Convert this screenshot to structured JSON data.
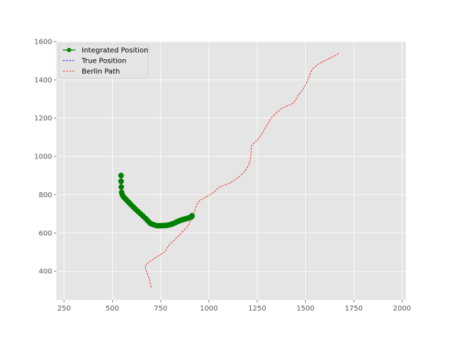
{
  "chart_data": {
    "type": "line",
    "title": "",
    "xlabel": "",
    "ylabel": "",
    "xlim": [
      210,
      2020
    ],
    "ylim": [
      250,
      1600
    ],
    "xticks": [
      250,
      500,
      750,
      1000,
      1250,
      1500,
      1750,
      2000
    ],
    "yticks": [
      400,
      600,
      800,
      1000,
      1200,
      1400,
      1600
    ],
    "grid": true,
    "legend_position": "top-left",
    "background": "#e5e5e5",
    "series": [
      {
        "name": "Integrated Position",
        "color": "#008000",
        "style": "solid",
        "marker": "circle",
        "x": [
          545,
          545,
          546,
          548,
          552,
          558,
          566,
          575,
          585,
          596,
          608,
          620,
          633,
          646,
          659,
          672,
          684,
          696,
          708,
          720,
          733,
          746,
          758,
          770,
          782,
          794,
          805,
          815,
          826,
          836,
          846,
          856,
          866,
          876,
          886,
          896,
          906,
          911,
          912
        ],
        "y": [
          900,
          870,
          840,
          812,
          798,
          788,
          780,
          770,
          760,
          748,
          736,
          724,
          712,
          700,
          688,
          676,
          663,
          651,
          645,
          641,
          638,
          638,
          638,
          639,
          640,
          642,
          645,
          649,
          654,
          659,
          663,
          667,
          670,
          673,
          676,
          679,
          682,
          686,
          690
        ]
      },
      {
        "name": "True Position",
        "color": "#0000ff",
        "style": "dashed",
        "x": [],
        "y": []
      },
      {
        "name": "Berlin Path",
        "color": "#ff0000",
        "style": "dashed",
        "x": [
          700,
          698,
          694,
          690,
          684,
          678,
          672,
          669,
          680,
          695,
          710,
          725,
          745,
          760,
          775,
          785,
          800,
          818,
          836,
          852,
          868,
          884,
          896,
          904,
          912,
          920,
          928,
          936,
          946,
          956,
          968,
          980,
          994,
          1010,
          1025,
          1040,
          1058,
          1078,
          1098,
          1118,
          1138,
          1158,
          1176,
          1190,
          1200,
          1208,
          1212,
          1214,
          1216,
          1218,
          1219,
          1220,
          1222,
          1228,
          1240,
          1254,
          1266,
          1278,
          1290,
          1302,
          1314,
          1326,
          1338,
          1350,
          1362,
          1376,
          1390,
          1406,
          1422,
          1438,
          1452,
          1460,
          1464,
          1472,
          1484,
          1496,
          1506,
          1514,
          1522,
          1530,
          1538,
          1546,
          1552,
          1560,
          1572,
          1584,
          1596,
          1608,
          1620,
          1632,
          1644,
          1656,
          1664,
          1672,
          1676
        ],
        "y": [
          315,
          330,
          350,
          365,
          380,
          395,
          410,
          425,
          440,
          452,
          462,
          472,
          484,
          494,
          505,
          525,
          545,
          560,
          578,
          595,
          612,
          628,
          645,
          662,
          680,
          700,
          722,
          744,
          762,
          772,
          778,
          785,
          793,
          802,
          812,
          828,
          842,
          848,
          856,
          866,
          880,
          895,
          912,
          928,
          945,
          962,
          970,
          985,
          1000,
          1020,
          1040,
          1052,
          1058,
          1065,
          1076,
          1090,
          1106,
          1124,
          1146,
          1166,
          1186,
          1204,
          1216,
          1228,
          1238,
          1250,
          1258,
          1264,
          1270,
          1280,
          1300,
          1316,
          1324,
          1330,
          1345,
          1365,
          1385,
          1405,
          1425,
          1445,
          1458,
          1465,
          1470,
          1478,
          1486,
          1492,
          1498,
          1504,
          1510,
          1516,
          1522,
          1528,
          1533,
          1538,
          1542
        ]
      }
    ]
  }
}
